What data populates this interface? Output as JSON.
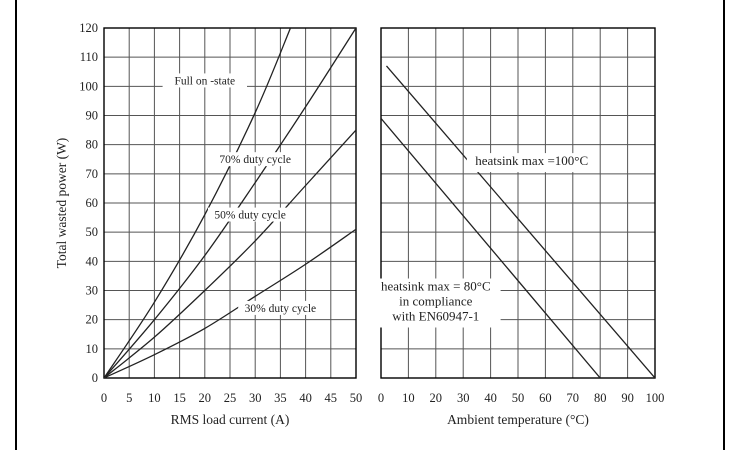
{
  "chart_data": [
    {
      "type": "line",
      "title": "",
      "xlabel": "RMS load current (A)",
      "ylabel": "Total wasted power (W)",
      "xlim": [
        0,
        50
      ],
      "ylim": [
        0,
        120
      ],
      "xticks": [
        "0",
        "5",
        "10",
        "15",
        "20",
        "25",
        "30",
        "35",
        "40",
        "45",
        "50"
      ],
      "yticks": [
        "0",
        "10",
        "20",
        "30",
        "40",
        "50",
        "60",
        "70",
        "80",
        "90",
        "100",
        "110",
        "120"
      ],
      "grid": true,
      "series": [
        {
          "name": "Full on -state",
          "points": [
            [
              0,
              0
            ],
            [
              10,
              26
            ],
            [
              20,
              56
            ],
            [
              30,
              91
            ],
            [
              37,
              120
            ]
          ]
        },
        {
          "name": "70% duty cycle",
          "points": [
            [
              0,
              0
            ],
            [
              10,
              20
            ],
            [
              20,
              42
            ],
            [
              30,
              67
            ],
            [
              40,
              93
            ],
            [
              50,
              120
            ]
          ]
        },
        {
          "name": "50% duty cycle",
          "points": [
            [
              0,
              0
            ],
            [
              10,
              14
            ],
            [
              20,
              30
            ],
            [
              30,
              47
            ],
            [
              40,
              66
            ],
            [
              50,
              85
            ]
          ]
        },
        {
          "name": "30% duty cycle",
          "points": [
            [
              0,
              0
            ],
            [
              10,
              8
            ],
            [
              20,
              17
            ],
            [
              30,
              28
            ],
            [
              40,
              39
            ],
            [
              50,
              51
            ]
          ]
        }
      ],
      "annotations": [
        {
          "key": "full",
          "text": "Full on -state",
          "x": 20,
          "y": 101
        },
        {
          "key": "d70",
          "text": "70% duty cycle",
          "x": 30,
          "y": 74
        },
        {
          "key": "d50",
          "text": "50% duty cycle",
          "x": 29,
          "y": 55
        },
        {
          "key": "d30",
          "text": "30% duty cycle",
          "x": 35,
          "y": 23
        }
      ]
    },
    {
      "type": "line",
      "title": "",
      "xlabel": "Ambient temperature (°C)",
      "ylabel": "",
      "xlim": [
        0,
        100
      ],
      "ylim": [
        0,
        120
      ],
      "xticks": [
        "0",
        "10",
        "20",
        "30",
        "40",
        "50",
        "60",
        "70",
        "80",
        "90",
        "100"
      ],
      "grid": true,
      "series": [
        {
          "name": "heatsink max =100°C",
          "points": [
            [
              2,
              107
            ],
            [
              100,
              0
            ]
          ]
        },
        {
          "name": "heatsink max = 80°C",
          "points": [
            [
              0,
              89
            ],
            [
              80,
              0
            ]
          ]
        }
      ],
      "annotations": [
        {
          "key": "hs100",
          "lines": [
            "heatsink max =100°C"
          ],
          "x": 55,
          "y": 73
        },
        {
          "key": "hs80",
          "lines": [
            "heatsink max = 80°C",
            "in compliance",
            "with EN60947-1"
          ],
          "x": 20,
          "y": 30
        }
      ]
    }
  ]
}
